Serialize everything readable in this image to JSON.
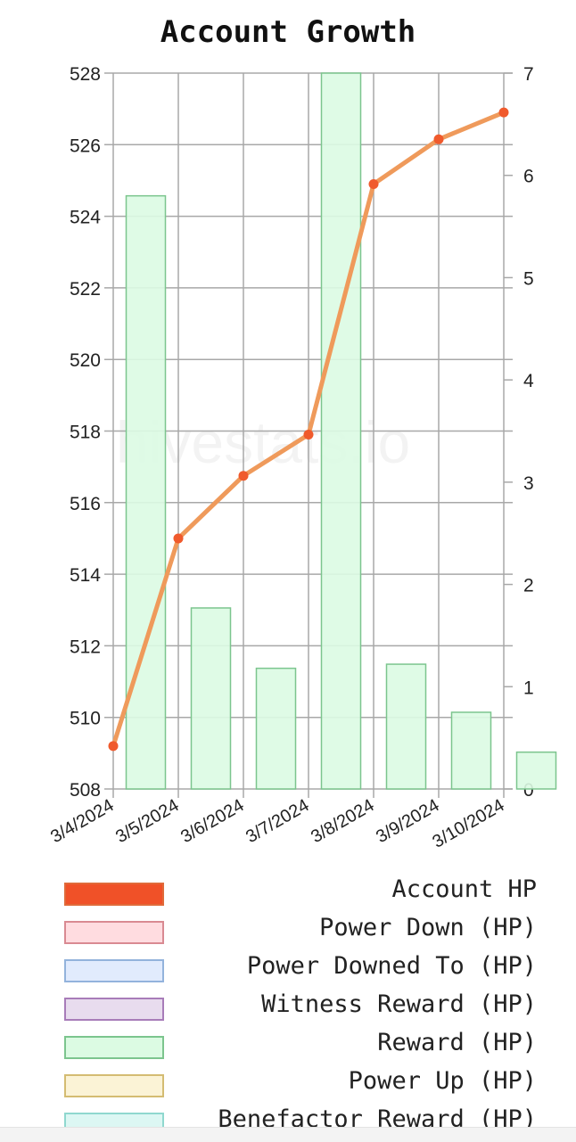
{
  "title": "Account Growth",
  "watermark": "hivestats.io",
  "chart_data": {
    "type": "bar",
    "title": "Account Growth",
    "xlabel": "",
    "ylabel": "",
    "categories": [
      "3/4/2024",
      "3/5/2024",
      "3/6/2024",
      "3/7/2024",
      "3/8/2024",
      "3/9/2024",
      "3/10/2024"
    ],
    "y_left": {
      "ticks": [
        508,
        510,
        512,
        514,
        516,
        518,
        520,
        522,
        524,
        526,
        528
      ],
      "range": [
        508,
        528
      ]
    },
    "y_right": {
      "ticks": [
        0,
        1,
        2,
        3,
        4,
        5,
        6,
        7
      ],
      "range": [
        0,
        7
      ]
    },
    "grid": true,
    "series": [
      {
        "name": "Account HP",
        "type": "line",
        "axis": "left",
        "color": "#f05a2c",
        "line_color": "#ef9a5b",
        "values": [
          509.2,
          515.0,
          516.75,
          517.9,
          524.9,
          526.15,
          526.9
        ]
      },
      {
        "name": "Reward (HP)",
        "type": "bar",
        "axis": "right",
        "fill": "#dcfbe3",
        "stroke": "#7cc58e",
        "values": [
          5.8,
          1.77,
          1.18,
          7.0,
          1.22,
          0.75,
          0.36
        ]
      }
    ],
    "legend_position": "bottom"
  },
  "legend": [
    {
      "label": "Account HP",
      "fill": "#f05128",
      "stroke": "#e06a3a"
    },
    {
      "label": "Power Down (HP)",
      "fill": "#ffdce0",
      "stroke": "#d98a92"
    },
    {
      "label": "Power Downed To (HP)",
      "fill": "#e1ebfd",
      "stroke": "#93b3dc"
    },
    {
      "label": "Witness Reward (HP)",
      "fill": "#e8dcee",
      "stroke": "#a87cb9"
    },
    {
      "label": "Reward (HP)",
      "fill": "#dcfbe3",
      "stroke": "#7cc58e"
    },
    {
      "label": "Power Up (HP)",
      "fill": "#fbf3d6",
      "stroke": "#d4bc72"
    },
    {
      "label": "Benefactor Reward (HP)",
      "fill": "#dcf7f3",
      "stroke": "#8fd8cf"
    }
  ]
}
